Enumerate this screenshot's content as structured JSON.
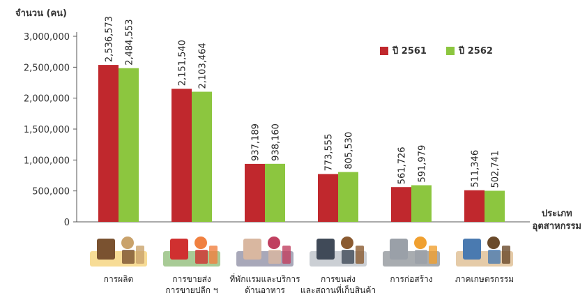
{
  "colors": {
    "series_2561": "#c0282d",
    "series_2562": "#8cc63f",
    "axis": "#555555"
  },
  "chart_data": {
    "type": "bar",
    "ylabel": "จำนวน (คน)",
    "xlabel_line1": "ประเภท",
    "xlabel_line2": "อุตสาหกรรม",
    "ylim": [
      0,
      3000000
    ],
    "yticks": [
      "0",
      "500,000",
      "1,000,000",
      "1,500,000",
      "2,000,000",
      "2,500,000",
      "3,000,000"
    ],
    "ytick_values": [
      0,
      500000,
      1000000,
      1500000,
      2000000,
      2500000,
      3000000
    ],
    "categories": [
      [
        "การผลิต"
      ],
      [
        "การขายส่ง",
        "การขายปลีก ฯ"
      ],
      [
        "ที่พักแรมและบริการ",
        "ด้านอาหาร"
      ],
      [
        "การขนส่ง",
        "และสถานที่เก็บสินค้า"
      ],
      [
        "การก่อสร้าง"
      ],
      [
        "ภาคเกษตรกรรม"
      ]
    ],
    "series": [
      {
        "name": "ปี 2561",
        "values": [
          2536573,
          2151540,
          937189,
          773555,
          561726,
          511346
        ],
        "labels": [
          "2,536,573",
          "2,151,540",
          "937,189",
          "773,555",
          "561,726",
          "511,346"
        ]
      },
      {
        "name": "ปี 2562",
        "values": [
          2484553,
          2103464,
          938160,
          805530,
          591979,
          502741
        ],
        "labels": [
          "2,484,553",
          "2,103,464",
          "938,160",
          "805,530",
          "591,979",
          "502,741"
        ]
      }
    ],
    "grid": false,
    "legend": "top-right"
  },
  "pictures": [
    "factory-workers-icon",
    "shopping-cart-icon",
    "hotel-lobby-icon",
    "cargo-ship-icon",
    "construction-site-icon",
    "farmer-icon"
  ]
}
